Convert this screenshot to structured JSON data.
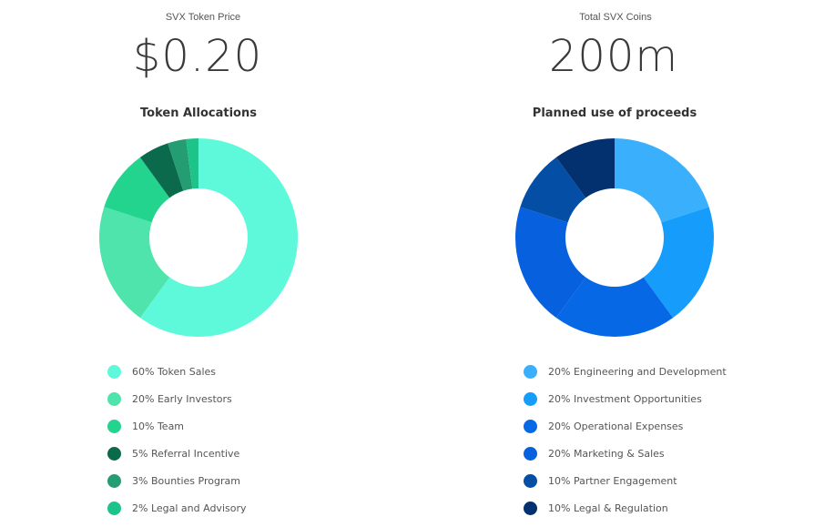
{
  "price": {
    "label": "SVX Token Price",
    "value": "$0.20"
  },
  "coins": {
    "label": "Total SVX Coins",
    "value": "200m"
  },
  "chart_data": [
    {
      "type": "pie",
      "title": "Token Allocations",
      "categories": [
        "Token Sales",
        "Early Investors",
        "Team",
        "Referral Incentive",
        "Bounties Program",
        "Legal and Advisory"
      ],
      "values": [
        60,
        20,
        10,
        5,
        3,
        2
      ],
      "labels": [
        "60% Token Sales",
        "20% Early Investors",
        "10% Team",
        "5% Referral Incentive",
        "3% Bounties Program",
        "2% Legal and Advisory"
      ],
      "colors": [
        "#5ef9db",
        "#4ee4ab",
        "#22d48e",
        "#0b6a4c",
        "#249d72",
        "#1dc489"
      ]
    },
    {
      "type": "pie",
      "title": "Planned use of proceeds",
      "categories": [
        "Engineering and Development",
        "Investment Opportunities",
        "Operational Expenses",
        "Marketing & Sales",
        "Partner Engagement",
        "Legal & Regulation"
      ],
      "values": [
        20,
        20,
        20,
        20,
        10,
        10
      ],
      "labels": [
        "20% Engineering and Development",
        "20% Investment Opportunities",
        "20% Operational Expenses",
        "20% Marketing & Sales",
        "10% Partner Engagement",
        "10% Legal & Regulation"
      ],
      "colors": [
        "#3ab0fd",
        "#169dfb",
        "#0768e5",
        "#0760de",
        "#044ea6",
        "#03306f"
      ]
    }
  ]
}
